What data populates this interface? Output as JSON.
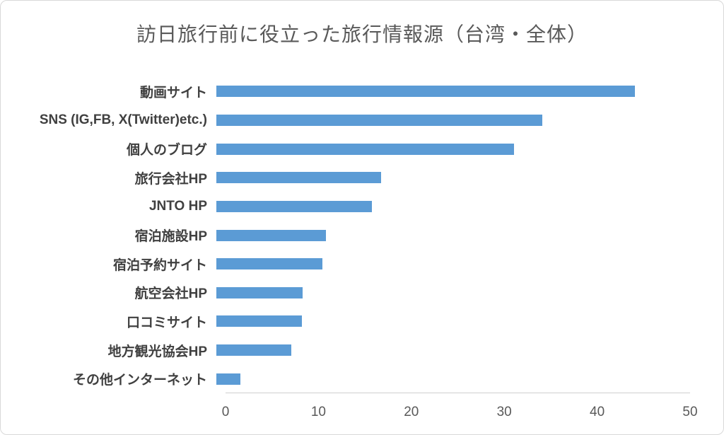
{
  "chart_data": {
    "type": "bar",
    "orientation": "horizontal",
    "title": "訪日旅行前に役立った旅行情報源（台湾・全体）",
    "categories": [
      "動画サイト",
      "SNS (IG,FB, X(Twitter)etc.)",
      "個人のブログ",
      "旅行会社HP",
      "JNTO HP",
      "宿泊施設HP",
      "宿泊予約サイト",
      "航空会社HP",
      "口コミサイト",
      "地方観光協会HP",
      "その他インターネット"
    ],
    "values": [
      44.2,
      34.4,
      31.4,
      17.4,
      16.4,
      11.6,
      11.2,
      9.1,
      9.0,
      7.9,
      2.5
    ],
    "xlabel": "",
    "ylabel": "",
    "xlim": [
      0,
      50
    ],
    "x_ticks": [
      0,
      10,
      20,
      30,
      40,
      50
    ],
    "x_tick_labels": [
      "0",
      "10",
      "20",
      "30",
      "40",
      "50"
    ],
    "grid": false,
    "legend": "none",
    "colors": {
      "bar": "#5b9bd5",
      "title_text": "#595959",
      "label_text": "#404040",
      "tick_text": "#595959",
      "axis_line": "#d0d0d0"
    }
  }
}
